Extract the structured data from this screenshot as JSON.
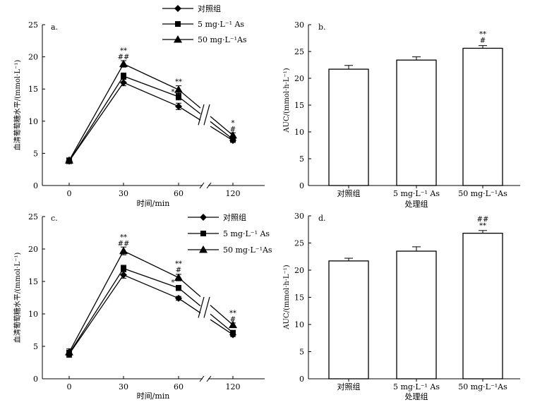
{
  "chart_data": [
    {
      "id": "a",
      "type": "line",
      "panel_label": "a.",
      "xlabel": "时间/min",
      "ylabel": "血清葡萄糖水平/(mmol·L⁻¹)",
      "x": [
        0,
        30,
        60,
        120
      ],
      "x_tick_labels": [
        "0",
        "30",
        "60",
        "120"
      ],
      "axis_break": "between 60 and 120",
      "ylim": [
        0,
        25
      ],
      "y_ticks": [
        0,
        5,
        10,
        15,
        20,
        25
      ],
      "legend_position": "above-right",
      "series": [
        {
          "name": "对照组",
          "marker": "diamond",
          "values": [
            3.8,
            16.0,
            12.3,
            7.0
          ],
          "errors": [
            0.4,
            0.5,
            0.5,
            0.3
          ]
        },
        {
          "name": "5 mg·L⁻¹ As",
          "marker": "square",
          "values": [
            3.8,
            17.0,
            13.8,
            7.2
          ],
          "errors": [
            0.4,
            0.5,
            0.5,
            0.3
          ]
        },
        {
          "name": "50 mg·L⁻¹As",
          "marker": "triangle",
          "values": [
            3.9,
            18.9,
            14.9,
            7.8
          ],
          "errors": [
            0.4,
            0.5,
            0.6,
            0.4
          ]
        }
      ],
      "annotations": [
        {
          "x": 30,
          "y": 19.6,
          "lines": [
            "**",
            "##"
          ]
        },
        {
          "x": 60,
          "y": 15.8,
          "lines": [
            "**"
          ]
        },
        {
          "x": 60,
          "y": 14.2,
          "lines": [
            "*"
          ],
          "side": "left"
        },
        {
          "x": 120,
          "y": 8.4,
          "lines": [
            "*",
            "#"
          ]
        }
      ]
    },
    {
      "id": "b",
      "type": "bar",
      "panel_label": "b.",
      "xlabel": "处理组",
      "ylabel": "AUC/(mmol·h·L⁻¹)",
      "categories": [
        "对照组",
        "5 mg·L⁻¹ As",
        "50 mg·L⁻¹As"
      ],
      "values": [
        21.7,
        23.4,
        25.6
      ],
      "errors": [
        0.7,
        0.6,
        0.5
      ],
      "ylim": [
        0,
        30
      ],
      "y_ticks": [
        0,
        5,
        10,
        15,
        20,
        25,
        30
      ],
      "annotations": [
        {
          "category": 2,
          "lines": [
            "**",
            "#"
          ]
        }
      ]
    },
    {
      "id": "c",
      "type": "line",
      "panel_label": "c.",
      "xlabel": "时间/min",
      "ylabel": "血清葡萄糖水平/(mmol·L⁻¹)",
      "x": [
        0,
        30,
        60,
        120
      ],
      "x_tick_labels": [
        "0",
        "30",
        "60",
        "120"
      ],
      "axis_break": "between 60 and 120",
      "ylim": [
        0,
        25
      ],
      "y_ticks": [
        0,
        5,
        10,
        15,
        20,
        25
      ],
      "legend_position": "top-right",
      "series": [
        {
          "name": "对照组",
          "marker": "diamond",
          "values": [
            3.8,
            16.0,
            12.4,
            6.8
          ],
          "errors": [
            0.5,
            0.5,
            0.3,
            0.3
          ]
        },
        {
          "name": "5 mg·L⁻¹ As",
          "marker": "square",
          "values": [
            3.9,
            17.0,
            14.0,
            7.1
          ],
          "errors": [
            0.5,
            0.5,
            0.4,
            0.3
          ]
        },
        {
          "name": "50 mg·L⁻¹As",
          "marker": "triangle",
          "values": [
            4.1,
            19.7,
            15.6,
            8.3
          ],
          "errors": [
            0.5,
            0.6,
            0.5,
            0.3
          ]
        }
      ],
      "annotations": [
        {
          "x": 30,
          "y": 20.5,
          "lines": [
            "**",
            "##"
          ]
        },
        {
          "x": 60,
          "y": 16.4,
          "lines": [
            "**",
            "#"
          ]
        },
        {
          "x": 60,
          "y": 14.5,
          "lines": [
            "*"
          ],
          "side": "left"
        },
        {
          "x": 120,
          "y": 8.8,
          "lines": [
            "**",
            "#"
          ]
        }
      ]
    },
    {
      "id": "d",
      "type": "bar",
      "panel_label": "d.",
      "xlabel": "处理组",
      "ylabel": "AUC/(mmol·h·L⁻¹)",
      "categories": [
        "对照组",
        "5 mg·L⁻¹ As",
        "50 mg·L⁻¹As"
      ],
      "values": [
        21.7,
        23.5,
        26.8
      ],
      "errors": [
        0.5,
        0.8,
        0.5
      ],
      "ylim": [
        0,
        30
      ],
      "y_ticks": [
        0,
        5,
        10,
        15,
        20,
        25,
        30
      ],
      "annotations": [
        {
          "category": 2,
          "lines": [
            "##",
            "**"
          ]
        }
      ]
    }
  ]
}
